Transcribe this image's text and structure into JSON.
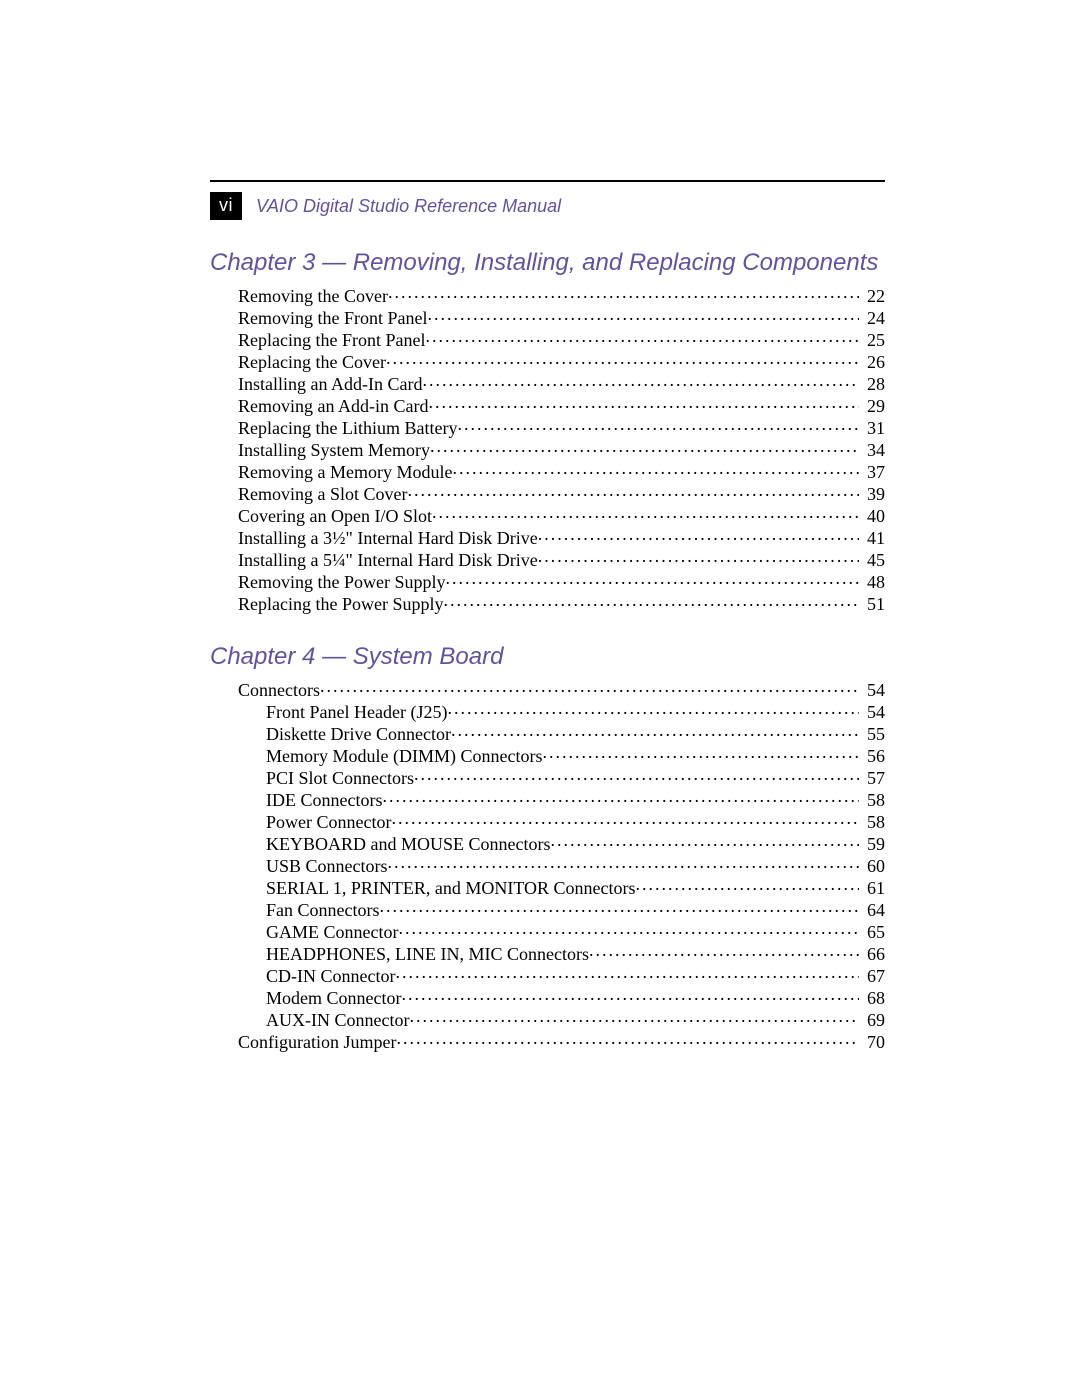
{
  "page": {
    "number": "vi",
    "running_title": "VAIO Digital Studio Reference Manual"
  },
  "colors": {
    "accent": "#62529c",
    "text": "#000000",
    "bg": "#ffffff",
    "page_num_bg": "#000000",
    "page_num_fg": "#ffffff"
  },
  "typography": {
    "body_font": "Palatino Linotype, Book Antiqua, Palatino, Georgia, serif",
    "heading_font": "Arial, Helvetica, sans-serif",
    "body_size_pt": 13,
    "heading_size_pt": 18,
    "running_title_size_pt": 13
  },
  "chapters": [
    {
      "title": "Chapter 3 — Removing, Installing, and Replacing Components",
      "entries": [
        {
          "level": 1,
          "title": "Removing the Cover ",
          "page": "22"
        },
        {
          "level": 1,
          "title": "Removing the Front Panel ",
          "page": "24"
        },
        {
          "level": 1,
          "title": "Replacing the Front Panel",
          "page": "25"
        },
        {
          "level": 1,
          "title": "Replacing the Cover ",
          "page": "26"
        },
        {
          "level": 1,
          "title": "Installing an Add-In Card ",
          "page": "28"
        },
        {
          "level": 1,
          "title": "Removing an Add-in Card ",
          "page": "29"
        },
        {
          "level": 1,
          "title": "Replacing the Lithium Battery ",
          "page": "31"
        },
        {
          "level": 1,
          "title": "Installing System Memory ",
          "page": "34"
        },
        {
          "level": 1,
          "title": "Removing a Memory Module ",
          "page": "37"
        },
        {
          "level": 1,
          "title": "Removing a Slot Cover",
          "page": "39"
        },
        {
          "level": 1,
          "title": "Covering an Open I/O Slot ",
          "page": "40"
        },
        {
          "level": 1,
          "title": "Installing a 3½\" Internal Hard Disk Drive ",
          "page": "41"
        },
        {
          "level": 1,
          "title": "Installing a 5¼\" Internal Hard Disk Drive ",
          "page": "45"
        },
        {
          "level": 1,
          "title": "Removing the Power Supply",
          "page": "48"
        },
        {
          "level": 1,
          "title": "Replacing the Power Supply ",
          "page": "51"
        }
      ]
    },
    {
      "title": "Chapter 4 — System Board",
      "entries": [
        {
          "level": 1,
          "title": "Connectors",
          "page": "54"
        },
        {
          "level": 2,
          "title": "Front Panel Header (J25)",
          "page": "54"
        },
        {
          "level": 2,
          "title": "Diskette Drive Connector ",
          "page": "55"
        },
        {
          "level": 2,
          "title": "Memory Module (DIMM) Connectors ",
          "page": "56"
        },
        {
          "level": 2,
          "title": "PCI Slot Connectors ",
          "page": "57"
        },
        {
          "level": 2,
          "title": "IDE Connectors ",
          "page": "58"
        },
        {
          "level": 2,
          "title": "Power Connector ",
          "page": "58"
        },
        {
          "level": 2,
          "title": "KEYBOARD and MOUSE Connectors ",
          "page": "59"
        },
        {
          "level": 2,
          "title": "USB Connectors ",
          "page": "60"
        },
        {
          "level": 2,
          "title": "SERIAL 1, PRINTER, and MONITOR Connectors ",
          "page": "61"
        },
        {
          "level": 2,
          "title": "Fan Connectors ",
          "page": "64"
        },
        {
          "level": 2,
          "title": "GAME Connector",
          "page": "65"
        },
        {
          "level": 2,
          "title": "HEADPHONES, LINE IN, MIC Connectors ",
          "page": "66"
        },
        {
          "level": 2,
          "title": "CD-IN Connector ",
          "page": "67"
        },
        {
          "level": 2,
          "title": "Modem Connector ",
          "page": "68"
        },
        {
          "level": 2,
          "title": "AUX-IN Connector ",
          "page": "69"
        },
        {
          "level": 1,
          "title": "Configuration Jumper ",
          "page": "70"
        }
      ]
    }
  ]
}
